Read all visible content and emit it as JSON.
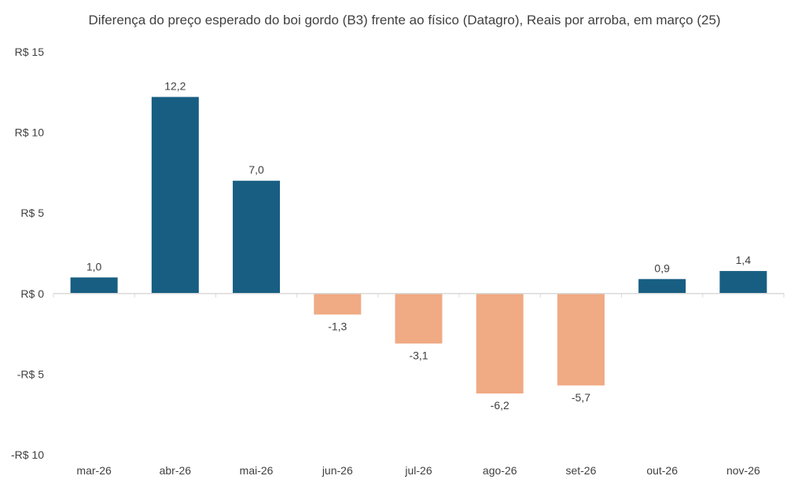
{
  "chart_data": {
    "type": "bar",
    "title": "Diferença do preço esperado do boi gordo (B3) frente ao físico (Datagro), Reais por arroba, em março (25)",
    "categories": [
      "mar-26",
      "abr-26",
      "mai-26",
      "jun-26",
      "jul-26",
      "ago-26",
      "set-26",
      "out-26",
      "nov-26"
    ],
    "values": [
      1.0,
      12.2,
      7.0,
      -1.3,
      -3.1,
      -6.2,
      -5.7,
      0.9,
      1.4
    ],
    "data_labels": [
      "1,0",
      "12,2",
      "7,0",
      "-1,3",
      "-3,1",
      "-6,2",
      "-5,7",
      "0,9",
      "1,4"
    ],
    "ylim": [
      -10,
      15
    ],
    "yticks": [
      15,
      10,
      5,
      0,
      -5,
      -10
    ],
    "ytick_labels": [
      "R$ 15",
      "R$ 10",
      "R$ 5",
      "R$ 0",
      "-R$ 5",
      "-R$ 10"
    ],
    "xlabel": "",
    "ylabel": "",
    "grid": false,
    "legend": "none",
    "colors": {
      "positive": "#175e82",
      "negative": "#f0aa84",
      "axis": "#d9d9d9"
    }
  }
}
